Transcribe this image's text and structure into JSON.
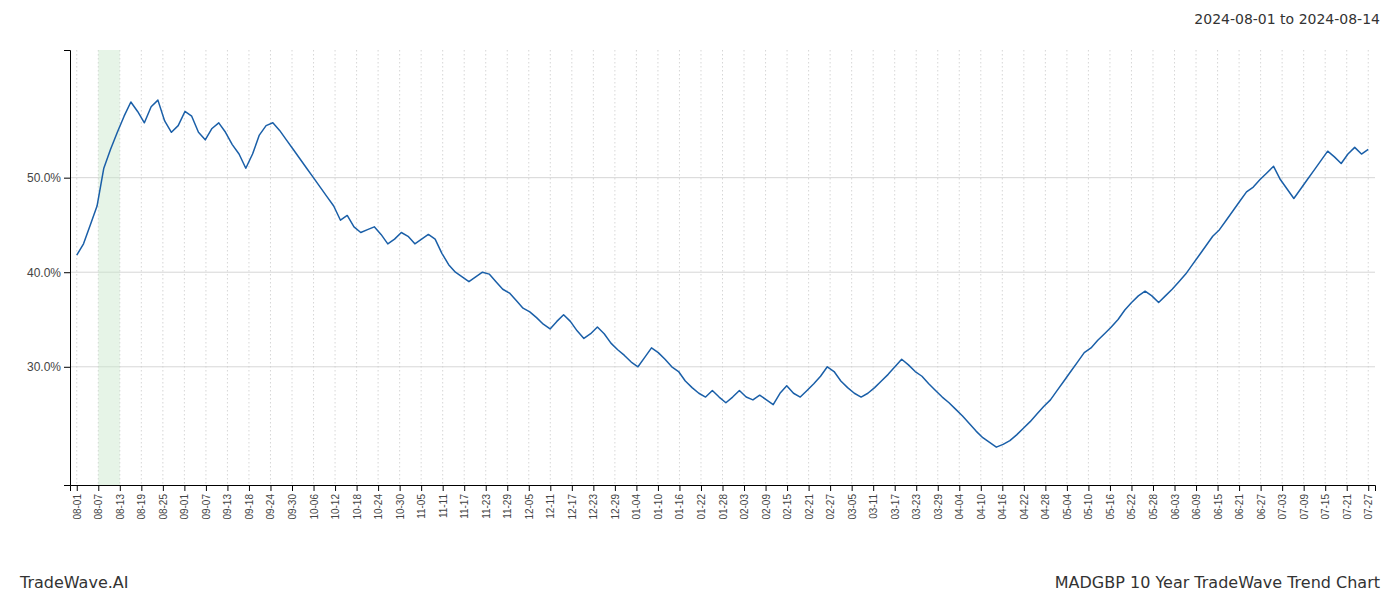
{
  "chart_data": {
    "type": "line",
    "title": "MADGBP 10 Year TradeWave Trend Chart",
    "subtitle": "2024-08-01 to 2024-08-14",
    "annotations": [
      "TradeWave.AI"
    ],
    "color": "#1a5fa8",
    "values": [
      0.418,
      0.43,
      0.45,
      0.47,
      0.51,
      0.53,
      0.548,
      0.565,
      0.58,
      0.57,
      0.558,
      0.575,
      0.582,
      0.56,
      0.548,
      0.555,
      0.57,
      0.565,
      0.548,
      0.54,
      0.552,
      0.558,
      0.548,
      0.535,
      0.525,
      0.51,
      0.525,
      0.545,
      0.555,
      0.558,
      0.55,
      0.54,
      0.53,
      0.52,
      0.51,
      0.5,
      0.49,
      0.48,
      0.47,
      0.455,
      0.46,
      0.448,
      0.442,
      0.445,
      0.448,
      0.44,
      0.43,
      0.435,
      0.442,
      0.438,
      0.43,
      0.435,
      0.44,
      0.435,
      0.42,
      0.408,
      0.4,
      0.395,
      0.39,
      0.395,
      0.4,
      0.398,
      0.39,
      0.382,
      0.378,
      0.37,
      0.362,
      0.358,
      0.352,
      0.345,
      0.34,
      0.348,
      0.355,
      0.348,
      0.338,
      0.33,
      0.335,
      0.342,
      0.335,
      0.325,
      0.318,
      0.312,
      0.305,
      0.3,
      0.31,
      0.32,
      0.315,
      0.308,
      0.3,
      0.295,
      0.285,
      0.278,
      0.272,
      0.268,
      0.275,
      0.268,
      0.262,
      0.268,
      0.275,
      0.268,
      0.265,
      0.27,
      0.265,
      0.26,
      0.272,
      0.28,
      0.272,
      0.268,
      0.275,
      0.282,
      0.29,
      0.3,
      0.295,
      0.285,
      0.278,
      0.272,
      0.268,
      0.272,
      0.278,
      0.285,
      0.292,
      0.3,
      0.308,
      0.302,
      0.295,
      0.29,
      0.282,
      0.275,
      0.268,
      0.262,
      0.255,
      0.248,
      0.24,
      0.232,
      0.225,
      0.22,
      0.215,
      0.218,
      0.222,
      0.228,
      0.235,
      0.242,
      0.25,
      0.258,
      0.265,
      0.275,
      0.285,
      0.295,
      0.305,
      0.315,
      0.32,
      0.328,
      0.335,
      0.342,
      0.35,
      0.36,
      0.368,
      0.375,
      0.38,
      0.375,
      0.368,
      0.375,
      0.382,
      0.39,
      0.398,
      0.408,
      0.418,
      0.428,
      0.438,
      0.445,
      0.455,
      0.465,
      0.475,
      0.485,
      0.49,
      0.498,
      0.505,
      0.512,
      0.498,
      0.488,
      0.478,
      0.488,
      0.498,
      0.508,
      0.518,
      0.528,
      0.522,
      0.515,
      0.525,
      0.532,
      0.525,
      0.53
    ],
    "highlight": {
      "start": 3.183333,
      "end": 6.366667,
      "color": "#c8e6c9"
    },
    "xlim": [
      -1,
      192
    ],
    "xticks": [
      {
        "value": 0,
        "label": "08-01"
      },
      {
        "value": 3.183333,
        "label": "08-07"
      },
      {
        "value": 6.366667,
        "label": "08-13"
      },
      {
        "value": 9.55,
        "label": "08-19"
      },
      {
        "value": 12.733333,
        "label": "08-25"
      },
      {
        "value": 15.916667,
        "label": "09-01"
      },
      {
        "value": 19.1,
        "label": "09-07"
      },
      {
        "value": 22.283333,
        "label": "09-13"
      },
      {
        "value": 25.466667,
        "label": "09-18"
      },
      {
        "value": 28.65,
        "label": "09-24"
      },
      {
        "value": 31.833333,
        "label": "09-30"
      },
      {
        "value": 35.016667,
        "label": "10-06"
      },
      {
        "value": 38.2,
        "label": "10-12"
      },
      {
        "value": 41.383333,
        "label": "10-18"
      },
      {
        "value": 44.566667,
        "label": "10-24"
      },
      {
        "value": 47.75,
        "label": "10-30"
      },
      {
        "value": 50.933333,
        "label": "11-05"
      },
      {
        "value": 54.116667,
        "label": "11-11"
      },
      {
        "value": 57.3,
        "label": "11-17"
      },
      {
        "value": 60.483333,
        "label": "11-23"
      },
      {
        "value": 63.666667,
        "label": "11-29"
      },
      {
        "value": 66.85,
        "label": "12-05"
      },
      {
        "value": 70.033333,
        "label": "12-11"
      },
      {
        "value": 73.216667,
        "label": "12-17"
      },
      {
        "value": 76.4,
        "label": "12-23"
      },
      {
        "value": 79.583333,
        "label": "12-29"
      },
      {
        "value": 82.766667,
        "label": "01-04"
      },
      {
        "value": 85.95,
        "label": "01-10"
      },
      {
        "value": 89.133333,
        "label": "01-16"
      },
      {
        "value": 92.316667,
        "label": "01-22"
      },
      {
        "value": 95.5,
        "label": "01-28"
      },
      {
        "value": 98.683333,
        "label": "02-03"
      },
      {
        "value": 101.866667,
        "label": "02-09"
      },
      {
        "value": 105.05,
        "label": "02-15"
      },
      {
        "value": 108.233333,
        "label": "02-21"
      },
      {
        "value": 111.416667,
        "label": "02-27"
      },
      {
        "value": 114.6,
        "label": "03-05"
      },
      {
        "value": 117.783333,
        "label": "03-11"
      },
      {
        "value": 120.966667,
        "label": "03-17"
      },
      {
        "value": 124.15,
        "label": "03-23"
      },
      {
        "value": 127.333333,
        "label": "03-29"
      },
      {
        "value": 130.516667,
        "label": "04-04"
      },
      {
        "value": 133.7,
        "label": "04-10"
      },
      {
        "value": 136.883333,
        "label": "04-16"
      },
      {
        "value": 140.066667,
        "label": "04-22"
      },
      {
        "value": 143.25,
        "label": "04-28"
      },
      {
        "value": 146.433333,
        "label": "05-04"
      },
      {
        "value": 149.616667,
        "label": "05-10"
      },
      {
        "value": 152.8,
        "label": "05-16"
      },
      {
        "value": 155.983333,
        "label": "05-22"
      },
      {
        "value": 159.166667,
        "label": "05-28"
      },
      {
        "value": 162.35,
        "label": "06-03"
      },
      {
        "value": 165.533333,
        "label": "06-09"
      },
      {
        "value": 168.716667,
        "label": "06-15"
      },
      {
        "value": 171.9,
        "label": "06-21"
      },
      {
        "value": 175.083333,
        "label": "06-27"
      },
      {
        "value": 178.266667,
        "label": "07-03"
      },
      {
        "value": 181.45,
        "label": "07-09"
      },
      {
        "value": 184.633333,
        "label": "07-15"
      },
      {
        "value": 187.816667,
        "label": "07-21"
      },
      {
        "value": 191,
        "label": "07-27"
      }
    ],
    "ylim": [
      0.175,
      0.635
    ],
    "yticks": [
      {
        "value": 0.3,
        "label": "30.0%"
      },
      {
        "value": 0.4,
        "label": "40.0%"
      },
      {
        "value": 0.5,
        "label": "50.0%"
      }
    ],
    "grid": true
  }
}
